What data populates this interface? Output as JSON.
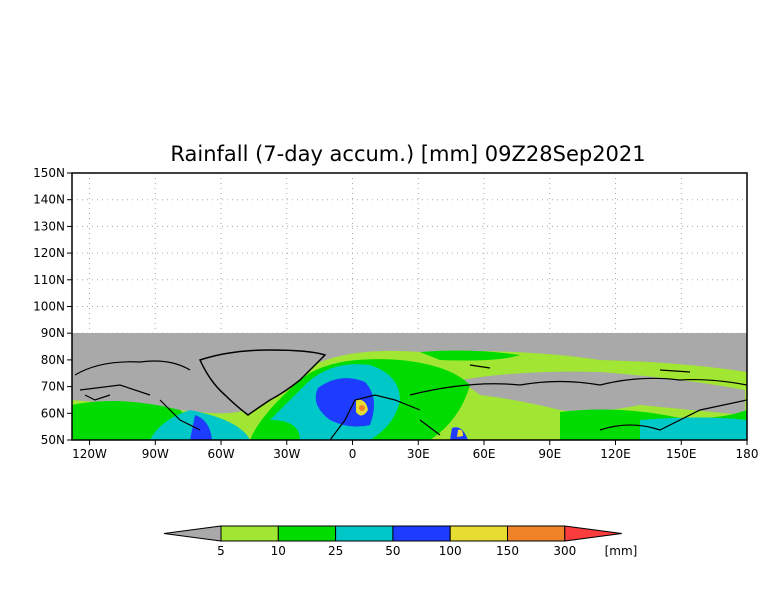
{
  "chart_data": {
    "type": "heatmap",
    "title": "Rainfall (7-day accum.) [mm] 09Z28Sep2021",
    "xlabel": "",
    "ylabel": "",
    "xlim": [
      -128,
      180
    ],
    "ylim": [
      50,
      150
    ],
    "data_lat_range": [
      50,
      90
    ],
    "grid": true,
    "x_ticks": [
      {
        "value": -120,
        "label": "120W"
      },
      {
        "value": -90,
        "label": "90W"
      },
      {
        "value": -60,
        "label": "60W"
      },
      {
        "value": -30,
        "label": "30W"
      },
      {
        "value": 0,
        "label": "0"
      },
      {
        "value": 30,
        "label": "30E"
      },
      {
        "value": 60,
        "label": "60E"
      },
      {
        "value": 90,
        "label": "90E"
      },
      {
        "value": 120,
        "label": "120E"
      },
      {
        "value": 150,
        "label": "150E"
      },
      {
        "value": 180,
        "label": "180"
      }
    ],
    "y_ticks": [
      {
        "value": 150,
        "label": "150N"
      },
      {
        "value": 140,
        "label": "140N"
      },
      {
        "value": 130,
        "label": "130N"
      },
      {
        "value": 120,
        "label": "120N"
      },
      {
        "value": 110,
        "label": "110N"
      },
      {
        "value": 100,
        "label": "100N"
      },
      {
        "value": 90,
        "label": "90N"
      },
      {
        "value": 80,
        "label": "80N"
      },
      {
        "value": 70,
        "label": "70N"
      },
      {
        "value": 60,
        "label": "60N"
      },
      {
        "value": 50,
        "label": "50N"
      }
    ],
    "legend": {
      "placement": "bottom",
      "unit": "[mm]",
      "levels": [
        "5",
        "10",
        "25",
        "50",
        "100",
        "150",
        "300"
      ],
      "colors": [
        "#a9a9a9",
        "#a0e632",
        "#00dc00",
        "#00c8c8",
        "#1e3cff",
        "#e6dc32",
        "#f08228",
        "#fa3c3c"
      ]
    }
  }
}
